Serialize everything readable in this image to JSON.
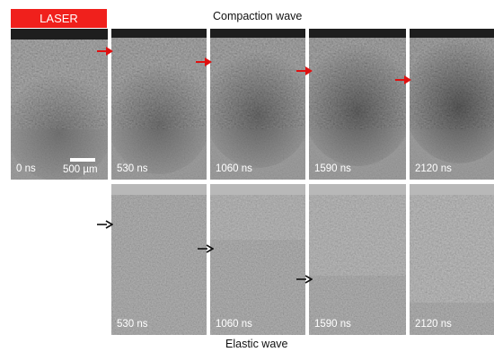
{
  "laser_label": "LASER",
  "top_title": "Compaction wave",
  "bottom_title": "Elastic wave",
  "scale_label": "500 µm",
  "colors": {
    "laser": "#f0201c",
    "red_arrow": "#e01010",
    "black_arrow": "#111111"
  },
  "top_row": [
    {
      "time": "0 ns"
    },
    {
      "time": "530 ns"
    },
    {
      "time": "1060 ns"
    },
    {
      "time": "1590 ns"
    },
    {
      "time": "2120 ns"
    }
  ],
  "bottom_row": [
    {
      "time": "530 ns"
    },
    {
      "time": "1060 ns"
    },
    {
      "time": "1590 ns"
    },
    {
      "time": "2120 ns"
    }
  ]
}
